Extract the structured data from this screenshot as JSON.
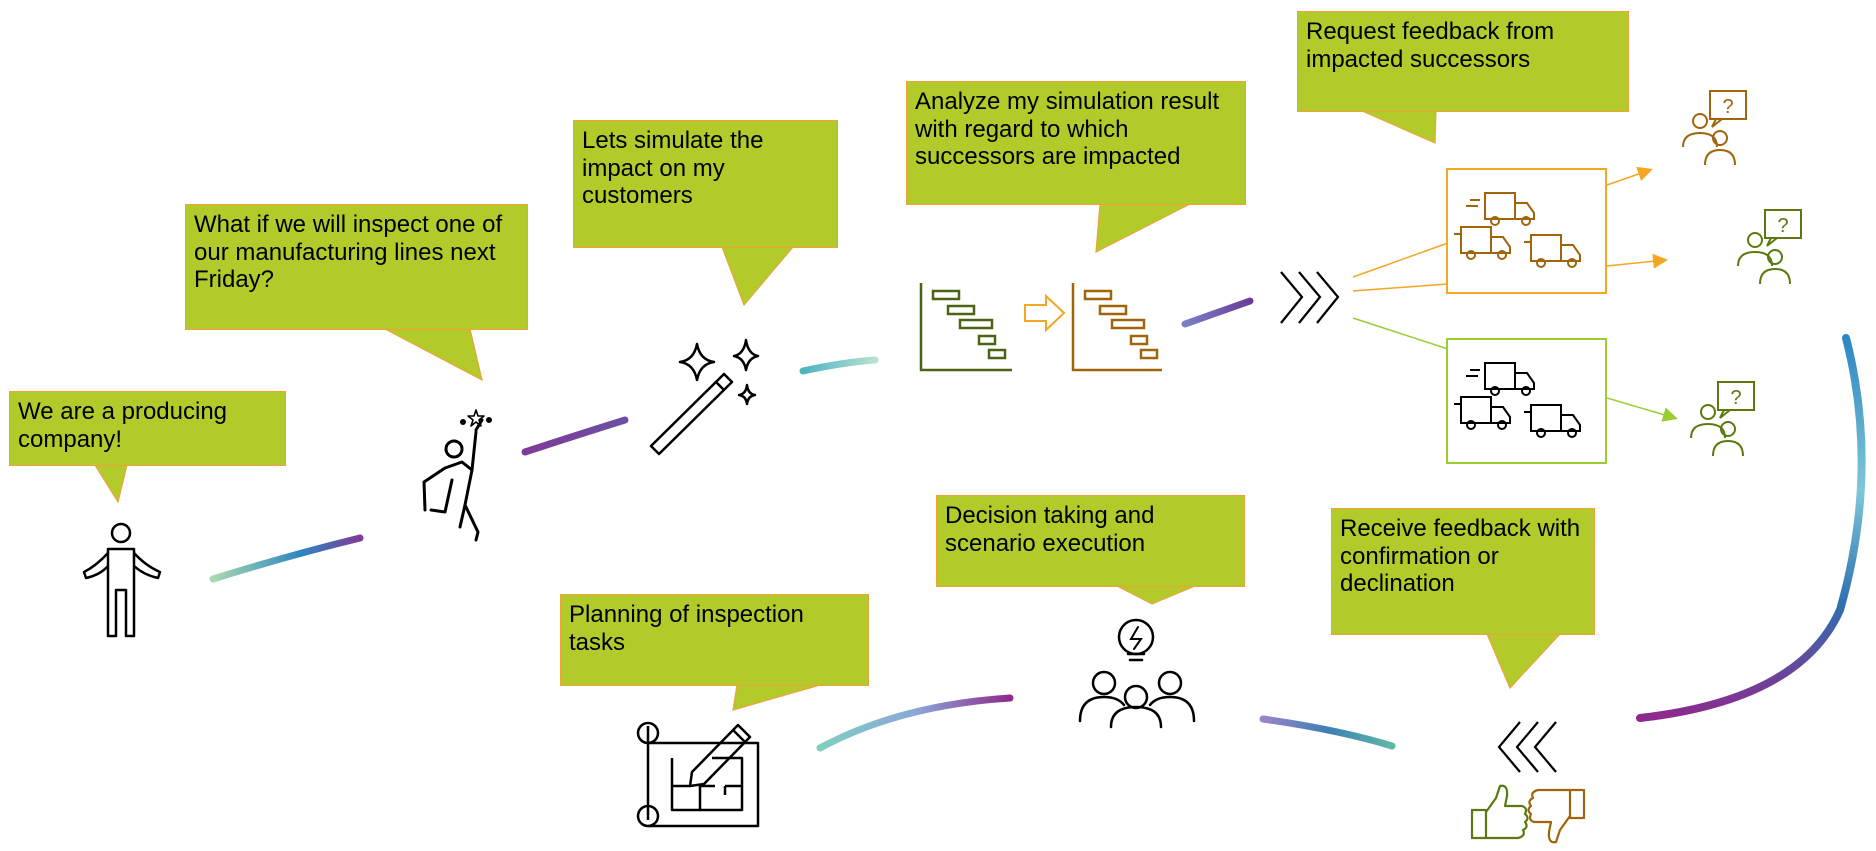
{
  "colors": {
    "bubble_fill": "#b2cb2b",
    "bubble_border": "#f0a23a",
    "accent_orange": "#f5a623",
    "accent_brown": "#a0640a",
    "accent_green": "#5a7a10",
    "light_green": "#9acd32",
    "icon_black": "#000000"
  },
  "bubbles": {
    "producing_company": "We are a producing company!",
    "what_if": "What if we will inspect one of our manufacturing lines next Friday?",
    "simulate": "Lets simulate the impact on my customers",
    "analyze": "Analyze my simulation result with regard to which successors are impacted",
    "request_feedback": "Request feedback from impacted successors",
    "decision": "Decision taking and scenario execution",
    "receive_feedback": "Receive feedback with confirmation or declination",
    "planning": "Planning of inspection tasks"
  },
  "icons": [
    "person-shrug-icon",
    "person-celebrating-icon",
    "magic-wand-icon",
    "gantt-chart-icon",
    "arrow-right-icon",
    "chevrons-right-icon",
    "trucks-icon",
    "people-question-icon",
    "team-idea-icon",
    "blueprint-pencil-icon",
    "chevrons-left-icon",
    "thumbs-up-icon",
    "thumbs-down-icon"
  ]
}
